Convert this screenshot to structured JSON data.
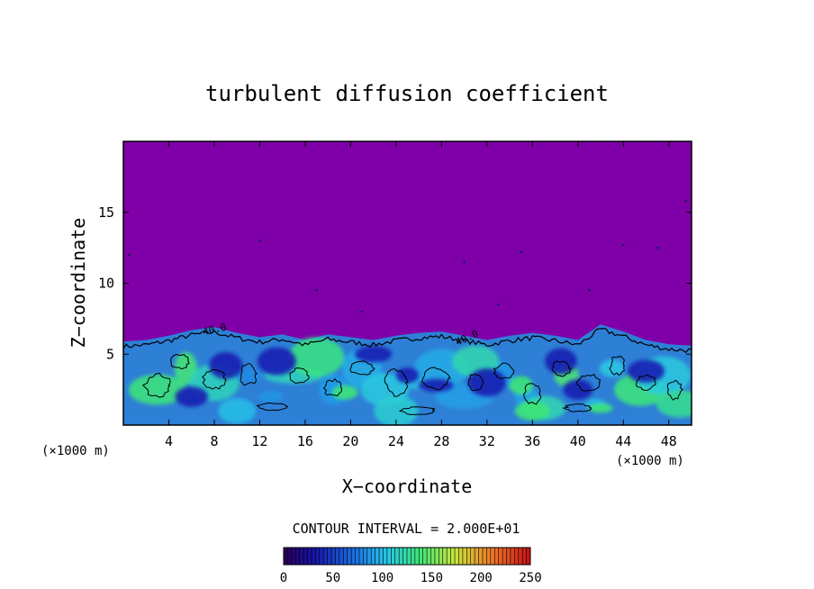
{
  "chart_data": {
    "type": "heatmap",
    "title": "turbulent diffusion coefficient",
    "xlabel": "X−coordinate",
    "ylabel": "Z−coordinate",
    "x_unit": "(×1000 m)",
    "z_unit": "(×1000 m)",
    "xlim": [
      0,
      50
    ],
    "ylim": [
      0,
      20
    ],
    "xticks": [
      4,
      8,
      12,
      16,
      20,
      24,
      28,
      32,
      36,
      40,
      44,
      48
    ],
    "yticks": [
      5,
      10,
      15
    ],
    "contour_interval_label": "CONTOUR INTERVAL = 2.000E+01",
    "contour_labels": [
      "40.0",
      "40.0"
    ],
    "colorbar": {
      "min": 0,
      "max": 250,
      "ticks": [
        0,
        50,
        100,
        150,
        200,
        250
      ]
    },
    "background_value": 0,
    "boundary_layer_top": [
      [
        0,
        5.9
      ],
      [
        2,
        6.0
      ],
      [
        4,
        6.3
      ],
      [
        6,
        6.7
      ],
      [
        8,
        6.9
      ],
      [
        10,
        6.5
      ],
      [
        12,
        6.2
      ],
      [
        14,
        6.4
      ],
      [
        16,
        6.0
      ],
      [
        18,
        6.4
      ],
      [
        20,
        6.2
      ],
      [
        22,
        6.0
      ],
      [
        24,
        6.3
      ],
      [
        26,
        6.5
      ],
      [
        28,
        6.6
      ],
      [
        30,
        6.3
      ],
      [
        32,
        6.0
      ],
      [
        34,
        6.3
      ],
      [
        36,
        6.5
      ],
      [
        38,
        6.3
      ],
      [
        40,
        6.0
      ],
      [
        42,
        7.1
      ],
      [
        44,
        6.6
      ],
      [
        46,
        6.0
      ],
      [
        48,
        5.7
      ],
      [
        50,
        5.6
      ]
    ]
  }
}
